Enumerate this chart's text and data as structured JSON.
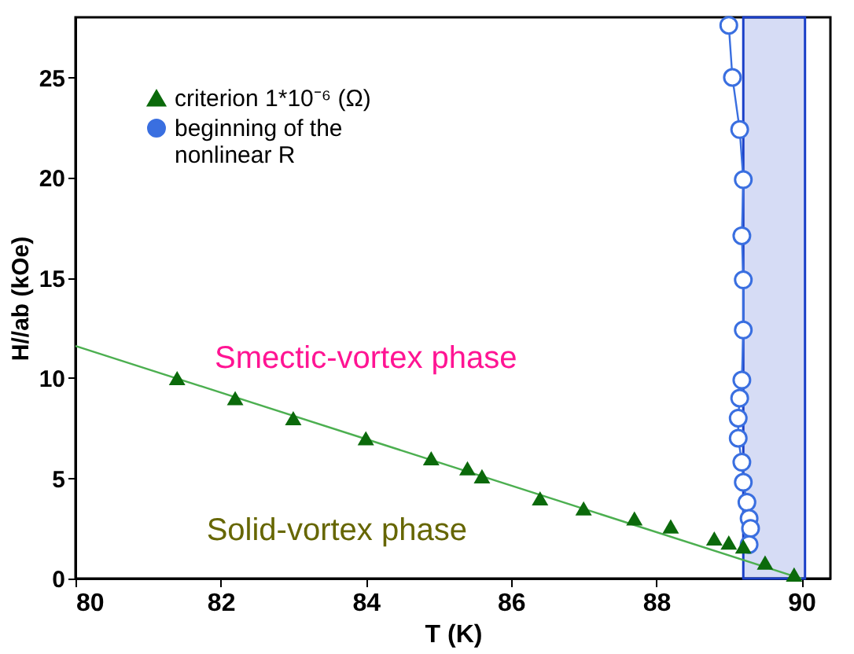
{
  "chart_data": {
    "type": "scatter",
    "xlabel": "T (K)",
    "ylabel": "H//ab (kOe)",
    "xlim": [
      80,
      90.4
    ],
    "xticks": [
      80,
      82,
      84,
      86,
      88,
      90
    ],
    "ylim": [
      0,
      28
    ],
    "yticks": [
      0,
      5,
      10,
      15,
      20,
      25
    ],
    "grid": false,
    "legend": "top left",
    "series": [
      {
        "name": "criterion 1*10⁻⁶ (Ω)",
        "marker": "triangle",
        "color": "#0b6a0b",
        "x": [
          81.4,
          82.2,
          83.0,
          84.0,
          84.9,
          85.4,
          85.6,
          86.4,
          87.0,
          87.7,
          88.2,
          88.8,
          89.0,
          89.2,
          89.5,
          89.9
        ],
        "values": [
          10,
          9,
          8,
          7,
          6,
          5.5,
          5.1,
          4,
          3.5,
          3,
          2.6,
          2.0,
          1.8,
          1.6,
          0.8,
          0.2
        ]
      },
      {
        "name": "beginning of the\nnonlinear R",
        "type": "line",
        "marker": "circle",
        "color": "#3a6fe0",
        "x": [
          89.0,
          89.05,
          89.15,
          89.2,
          89.18,
          89.2,
          89.2,
          89.18,
          89.15,
          89.13,
          89.13,
          89.18,
          89.2,
          89.25,
          89.28,
          89.3,
          89.28
        ],
        "values": [
          27.6,
          25.0,
          22.4,
          19.9,
          17.1,
          14.9,
          12.4,
          9.9,
          9.0,
          8.0,
          7.0,
          5.8,
          4.8,
          3.8,
          3.0,
          2.5,
          1.7
        ]
      },
      {
        "type": "line",
        "marker": "none",
        "color": "#4caf50",
        "x": [
          80,
          90
        ],
        "values": [
          11.6,
          0
        ]
      }
    ],
    "bands": [
      {
        "axis": "x",
        "from": 89.2,
        "to": 90.05,
        "color": "#1a3fc8"
      }
    ],
    "annotations": [
      "Smectic-vortex phase",
      "Solid-vortex phase"
    ]
  }
}
